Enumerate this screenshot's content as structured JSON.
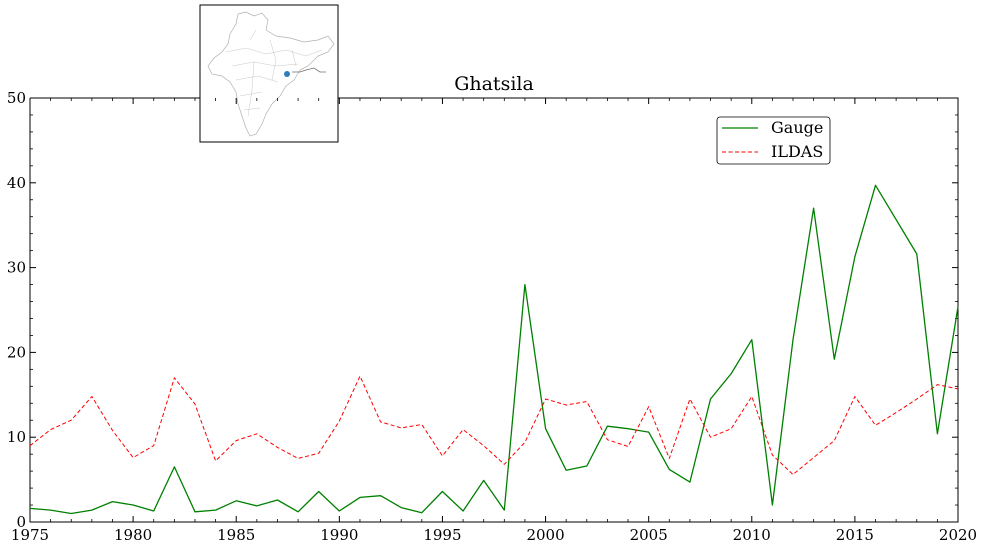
{
  "chart_data": {
    "type": "line",
    "title": "Ghatsila",
    "xlabel": "",
    "ylabel": "",
    "xlim": [
      1975,
      2020
    ],
    "ylim": [
      0,
      50
    ],
    "xticks": [
      1975,
      1980,
      1985,
      1990,
      1995,
      2000,
      2005,
      2010,
      2015,
      2020
    ],
    "yticks": [
      0,
      10,
      20,
      30,
      40,
      50
    ],
    "grid": false,
    "legend_position": "top-right",
    "inset_map": "India river basin locator map with gauge location marker",
    "series": [
      {
        "name": "Gauge",
        "color": "#008000",
        "style": "solid",
        "x": [
          1975,
          1976,
          1977,
          1978,
          1979,
          1980,
          1981,
          1982,
          1983,
          1984,
          1985,
          1986,
          1987,
          1988,
          1989,
          1990,
          1991,
          1992,
          1993,
          1994,
          1995,
          1996,
          1997,
          1998,
          1999,
          2000,
          2001,
          2002,
          2003,
          2004,
          2005,
          2006,
          2007,
          2008,
          2009,
          2010,
          2011,
          2012,
          2013,
          2014,
          2015,
          2016,
          2018,
          2019,
          2020
        ],
        "values": [
          1.6,
          1.4,
          1.0,
          1.4,
          2.4,
          2.0,
          1.3,
          6.5,
          1.2,
          1.4,
          2.5,
          1.9,
          2.6,
          1.2,
          3.6,
          1.3,
          2.9,
          3.1,
          1.7,
          1.1,
          3.6,
          1.3,
          4.9,
          1.4,
          28.0,
          11.0,
          6.1,
          6.6,
          11.3,
          11.0,
          10.6,
          6.2,
          4.7,
          14.5,
          17.5,
          21.5,
          2.0,
          21.5,
          37.0,
          19.2,
          31.3,
          39.7,
          31.6,
          10.4,
          25.4
        ]
      },
      {
        "name": "ILDAS",
        "color": "#ff0000",
        "style": "dashed",
        "x": [
          1975,
          1976,
          1977,
          1978,
          1979,
          1980,
          1981,
          1982,
          1983,
          1984,
          1985,
          1986,
          1987,
          1988,
          1989,
          1990,
          1991,
          1992,
          1993,
          1994,
          1995,
          1996,
          1997,
          1998,
          1999,
          2000,
          2001,
          2002,
          2003,
          2004,
          2005,
          2006,
          2007,
          2008,
          2009,
          2010,
          2011,
          2012,
          2013,
          2014,
          2015,
          2016,
          2017,
          2018,
          2019,
          2020
        ],
        "values": [
          9.0,
          10.9,
          12.0,
          14.8,
          10.8,
          7.6,
          9.0,
          17.0,
          13.9,
          7.2,
          9.6,
          10.4,
          8.8,
          7.5,
          8.1,
          11.9,
          17.2,
          11.8,
          11.1,
          11.5,
          7.8,
          10.9,
          9.0,
          6.8,
          9.4,
          14.5,
          13.8,
          14.2,
          9.7,
          8.9,
          13.6,
          7.5,
          14.5,
          10.0,
          11.0,
          14.8,
          7.9,
          5.6,
          7.6,
          9.6,
          14.8,
          11.4,
          12.9,
          14.5,
          16.2,
          15.7
        ]
      }
    ]
  }
}
